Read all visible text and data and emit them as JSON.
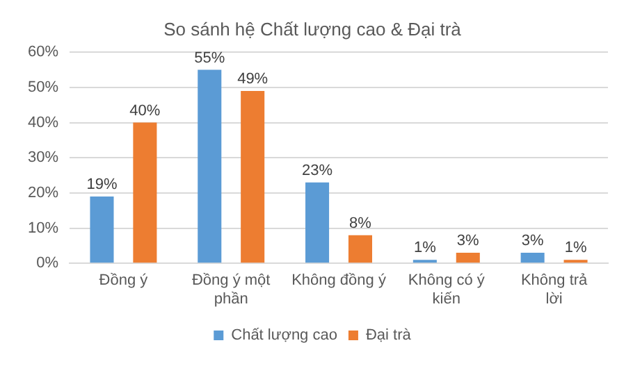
{
  "chart_data": {
    "type": "bar",
    "title": "So sánh hệ Chất lượng cao & Đại trà",
    "categories": [
      "Đồng ý",
      "Đồng ý một phần",
      "Không đồng ý",
      "Không có ý kiến",
      "Không trả lời"
    ],
    "series": [
      {
        "name": "Chất lượng cao",
        "color": "#5b9bd5",
        "values": [
          19,
          55,
          23,
          1,
          3
        ],
        "value_labels": [
          "19%",
          "55%",
          "23%",
          "1%",
          "3%"
        ]
      },
      {
        "name": "Đại trà",
        "color": "#ed7d31",
        "values": [
          40,
          49,
          8,
          3,
          1
        ],
        "value_labels": [
          "40%",
          "49%",
          "8%",
          "3%",
          "1%"
        ]
      }
    ],
    "ylim": [
      0,
      60
    ],
    "yticks": [
      {
        "value": 0,
        "label": "0%"
      },
      {
        "value": 10,
        "label": "10%"
      },
      {
        "value": 20,
        "label": "20%"
      },
      {
        "value": 30,
        "label": "30%"
      },
      {
        "value": 40,
        "label": "40%"
      },
      {
        "value": 50,
        "label": "50%"
      },
      {
        "value": 60,
        "label": "60%"
      }
    ],
    "grid": "y",
    "legend": "bottom"
  }
}
